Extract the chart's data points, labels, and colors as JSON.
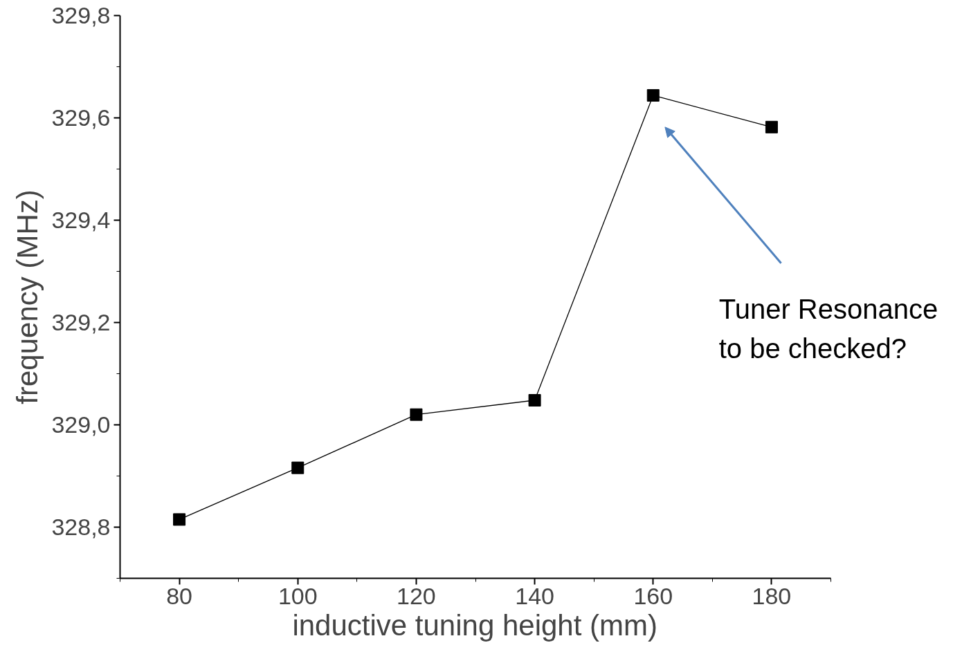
{
  "chart_data": {
    "type": "line",
    "xlabel": "inductive tuning height (mm)",
    "ylabel": "frequency (MHz)",
    "x": [
      80,
      100,
      120,
      140,
      160,
      180
    ],
    "series": [
      {
        "color": "#000000",
        "values": [
          328.815,
          328.916,
          329.02,
          329.048,
          329.644,
          329.582
        ]
      }
    ],
    "xlim": [
      70,
      190
    ],
    "xticks": [
      80,
      100,
      120,
      140,
      160,
      180
    ],
    "ylim": [
      328.7,
      329.8
    ],
    "yticks": [
      {
        "value": 328.8,
        "label": "328,8"
      },
      {
        "value": 329.0,
        "label": "329,0"
      },
      {
        "value": 329.2,
        "label": "329,2"
      },
      {
        "value": 329.4,
        "label": "329,4"
      },
      {
        "value": 329.6,
        "label": "329,6"
      },
      {
        "value": 329.8,
        "label": "329,8"
      }
    ],
    "marker": "square",
    "line_style": "solid",
    "grid": false,
    "annotations": [
      "Tuner Resonance\nto be checked?"
    ]
  }
}
